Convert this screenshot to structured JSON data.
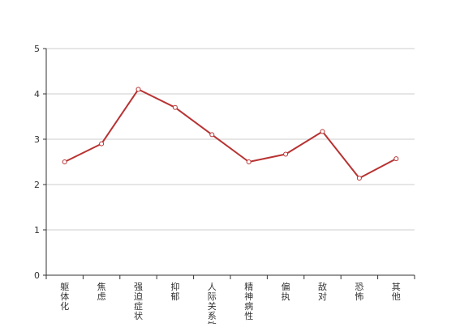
{
  "chart_data": {
    "type": "line",
    "title": "",
    "xlabel": "",
    "ylabel": "",
    "categories": [
      "躯体化",
      "焦虑",
      "强迫症状",
      "抑郁",
      "人际关系敏感",
      "精神病性",
      "偏执",
      "敌对",
      "恐怖",
      "其他"
    ],
    "series": [
      {
        "values": [
          2.5,
          2.9,
          4.1,
          3.7,
          3.1,
          2.5,
          2.67,
          3.17,
          2.14,
          2.57
        ]
      }
    ],
    "ylim": [
      0,
      5
    ],
    "yticks": [
      0,
      1,
      2,
      3,
      4,
      5
    ],
    "grid": true,
    "legend": "none",
    "colors": {
      "line": "#b83232",
      "marker_fill": "#ffffff",
      "grid": "#cccccc",
      "axis": "#333333"
    }
  }
}
